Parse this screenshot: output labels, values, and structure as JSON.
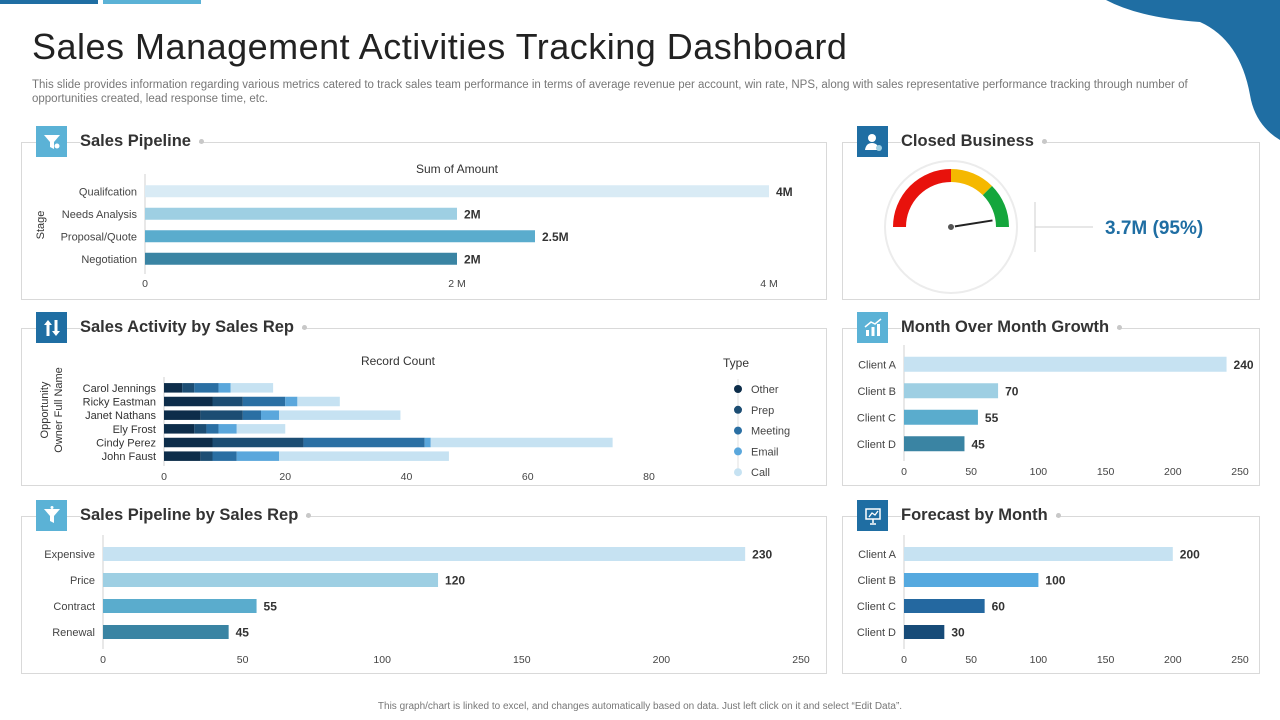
{
  "title": "Sales Management Activities Tracking Dashboard",
  "description": "This slide provides information regarding various metrics catered to track sales team performance in terms of average revenue per account, win rate, NPS, along with sales representative performance tracking through number of opportunities created, lead response time, etc.",
  "footer": "This graph/chart is linked to excel, and changes automatically based on data. Just left click on it and select “Edit Data”.",
  "colors": {
    "primary": "#1f6ea3",
    "accent": "#5bb2d6",
    "pale": "#c9e3f1"
  },
  "panels": {
    "sales_pipeline": {
      "title": "Sales Pipeline",
      "icon": "funnel-icon"
    },
    "closed_business": {
      "title": "Closed Business",
      "icon": "businessman-icon"
    },
    "sales_activity": {
      "title": "Sales Activity by Sales Rep",
      "icon": "sort-arrows-icon"
    },
    "month_growth": {
      "title": "Month Over Month Growth",
      "icon": "growth-chart-icon"
    },
    "pipeline_by_rep": {
      "title": "Sales Pipeline by Sales Rep",
      "icon": "funnel-icon"
    },
    "forecast": {
      "title": "Forecast by Month",
      "icon": "presentation-icon"
    }
  },
  "chart_data": [
    {
      "id": "sales_pipeline",
      "type": "bar",
      "orientation": "horizontal",
      "title": "Sum of Amount",
      "ylabel": "Stage",
      "categories": [
        "Qualifcation",
        "Needs Analysis",
        "Proposal/Quote",
        "Negotiation"
      ],
      "values": [
        4000000,
        2000000,
        2500000,
        2000000
      ],
      "value_labels": [
        "4M",
        "2M",
        "2.5M",
        "2M"
      ],
      "colors": [
        "#d9ebf5",
        "#9ecfe3",
        "#5aaccd",
        "#3a84a3"
      ],
      "xlim": [
        0,
        4000000
      ],
      "xticks": [
        0,
        2000000,
        4000000
      ],
      "xtick_labels": [
        "0",
        "2 M",
        "4 M"
      ]
    },
    {
      "id": "closed_business",
      "type": "gauge",
      "value_label": "3.7M (95%)",
      "value": 0.95,
      "segments": [
        {
          "color": "#e8120c",
          "span": 0.5
        },
        {
          "color": "#f5b800",
          "span": 0.25
        },
        {
          "color": "#14a63c",
          "span": 0.25
        }
      ]
    },
    {
      "id": "sales_activity",
      "type": "bar",
      "orientation": "horizontal",
      "stacked": true,
      "title": "Record Count",
      "ylabel_lines": [
        "Opportunity",
        "Owner Full Name"
      ],
      "legend_title": "Type",
      "categories": [
        "Carol Jennings",
        "Ricky Eastman",
        "Janet Nathans",
        "Ely Frost",
        "Cindy Perez",
        "John Faust"
      ],
      "series": [
        {
          "name": "Other",
          "color": "#0d2d4a",
          "values": [
            3,
            8,
            6,
            5,
            8,
            6
          ]
        },
        {
          "name": "Prep",
          "color": "#1c4d73",
          "values": [
            2,
            5,
            7,
            2,
            15,
            2
          ]
        },
        {
          "name": "Meeting",
          "color": "#2a6fa3",
          "values": [
            4,
            7,
            3,
            2,
            20,
            4
          ]
        },
        {
          "name": "Email",
          "color": "#5aa7dc",
          "values": [
            2,
            2,
            3,
            3,
            1,
            7
          ]
        },
        {
          "name": "Call",
          "color": "#c6e2f2",
          "values": [
            7,
            7,
            20,
            8,
            30,
            28
          ]
        }
      ],
      "xlim": [
        0,
        80
      ],
      "xticks": [
        0,
        20,
        40,
        60,
        80
      ]
    },
    {
      "id": "month_growth",
      "type": "bar",
      "orientation": "horizontal",
      "categories": [
        "Client A",
        "Client B",
        "Client C",
        "Client D"
      ],
      "values": [
        240,
        70,
        55,
        45
      ],
      "colors": [
        "#c6e2f2",
        "#9ecfe3",
        "#5aaccd",
        "#3a84a3"
      ],
      "xlim": [
        0,
        250
      ],
      "xticks": [
        0,
        50,
        100,
        150,
        200,
        250
      ]
    },
    {
      "id": "pipeline_by_rep",
      "type": "bar",
      "orientation": "horizontal",
      "categories": [
        "Expensive",
        "Price",
        "Contract",
        "Renewal"
      ],
      "values": [
        230,
        120,
        55,
        45
      ],
      "colors": [
        "#c6e2f2",
        "#9ecfe3",
        "#5aaccd",
        "#3a84a3"
      ],
      "xlim": [
        0,
        250
      ],
      "xticks": [
        0,
        50,
        100,
        150,
        200,
        250
      ]
    },
    {
      "id": "forecast",
      "type": "bar",
      "orientation": "horizontal",
      "categories": [
        "Client A",
        "Client B",
        "Client C",
        "Client D"
      ],
      "values": [
        200,
        100,
        60,
        30
      ],
      "colors": [
        "#c6e2f2",
        "#55a9df",
        "#2468a0",
        "#174b78"
      ],
      "xlim": [
        0,
        250
      ],
      "xticks": [
        0,
        50,
        100,
        150,
        200,
        250
      ]
    }
  ]
}
